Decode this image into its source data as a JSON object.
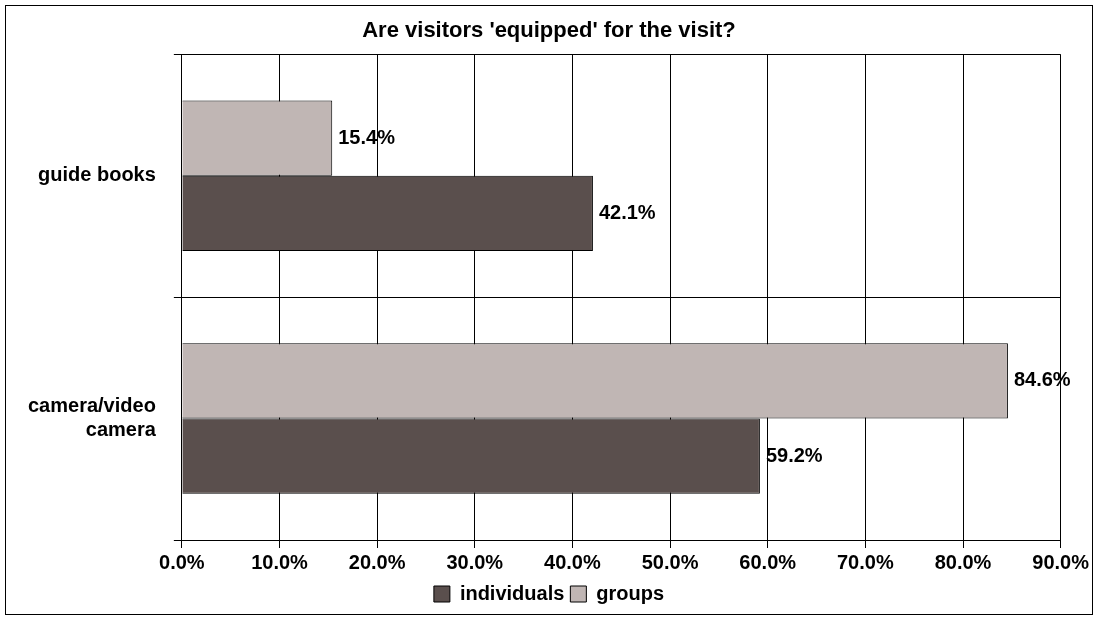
{
  "chart_data": {
    "type": "bar",
    "orientation": "horizontal",
    "title": "Are visitors 'equipped' for the visit?",
    "categories": [
      "guide books",
      "camera/video camera"
    ],
    "series": [
      {
        "name": "individuals",
        "color": "#5a4f4d",
        "values": [
          42.1,
          59.2
        ],
        "value_labels": [
          "42.1%",
          "59.2%"
        ]
      },
      {
        "name": "groups",
        "color": "#c0b6b4",
        "values": [
          15.4,
          84.6
        ],
        "value_labels": [
          "15.4%",
          "84.6%"
        ]
      }
    ],
    "xlim": [
      0,
      90
    ],
    "xticks": [
      {
        "value": 0,
        "label": "0.0%"
      },
      {
        "value": 10,
        "label": "10.0%"
      },
      {
        "value": 20,
        "label": "20.0%"
      },
      {
        "value": 30,
        "label": "30.0%"
      },
      {
        "value": 40,
        "label": "40.0%"
      },
      {
        "value": 50,
        "label": "50.0%"
      },
      {
        "value": 60,
        "label": "60.0%"
      },
      {
        "value": 70,
        "label": "70.0%"
      },
      {
        "value": 80,
        "label": "80.0%"
      },
      {
        "value": 90,
        "label": "90.0%"
      }
    ],
    "grid": true,
    "legend": "bottom"
  }
}
